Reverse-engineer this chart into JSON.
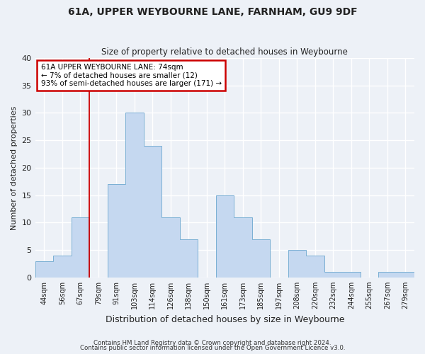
{
  "title": "61A, UPPER WEYBOURNE LANE, FARNHAM, GU9 9DF",
  "subtitle": "Size of property relative to detached houses in Weybourne",
  "xlabel": "Distribution of detached houses by size in Weybourne",
  "ylabel": "Number of detached properties",
  "bin_labels": [
    "44sqm",
    "56sqm",
    "67sqm",
    "79sqm",
    "91sqm",
    "103sqm",
    "114sqm",
    "126sqm",
    "138sqm",
    "150sqm",
    "161sqm",
    "173sqm",
    "185sqm",
    "197sqm",
    "208sqm",
    "220sqm",
    "232sqm",
    "244sqm",
    "255sqm",
    "267sqm",
    "279sqm"
  ],
  "bar_values": [
    3,
    4,
    11,
    0,
    17,
    30,
    24,
    11,
    7,
    0,
    15,
    11,
    7,
    0,
    5,
    4,
    1,
    1,
    0,
    1,
    1
  ],
  "bar_color": "#c5d8f0",
  "bar_edge_color": "#7aafd4",
  "ylim": [
    0,
    40
  ],
  "yticks": [
    0,
    5,
    10,
    15,
    20,
    25,
    30,
    35,
    40
  ],
  "annotation_title": "61A UPPER WEYBOURNE LANE: 74sqm",
  "annotation_line1": "← 7% of detached houses are smaller (12)",
  "annotation_line2": "93% of semi-detached houses are larger (171) →",
  "annotation_box_color": "#ffffff",
  "annotation_box_edge": "#cc0000",
  "property_line_color": "#cc0000",
  "footer_line1": "Contains HM Land Registry data © Crown copyright and database right 2024.",
  "footer_line2": "Contains public sector information licensed under the Open Government Licence v3.0.",
  "background_color": "#edf1f7",
  "grid_color": "#ffffff",
  "tick_label_color": "#222222"
}
